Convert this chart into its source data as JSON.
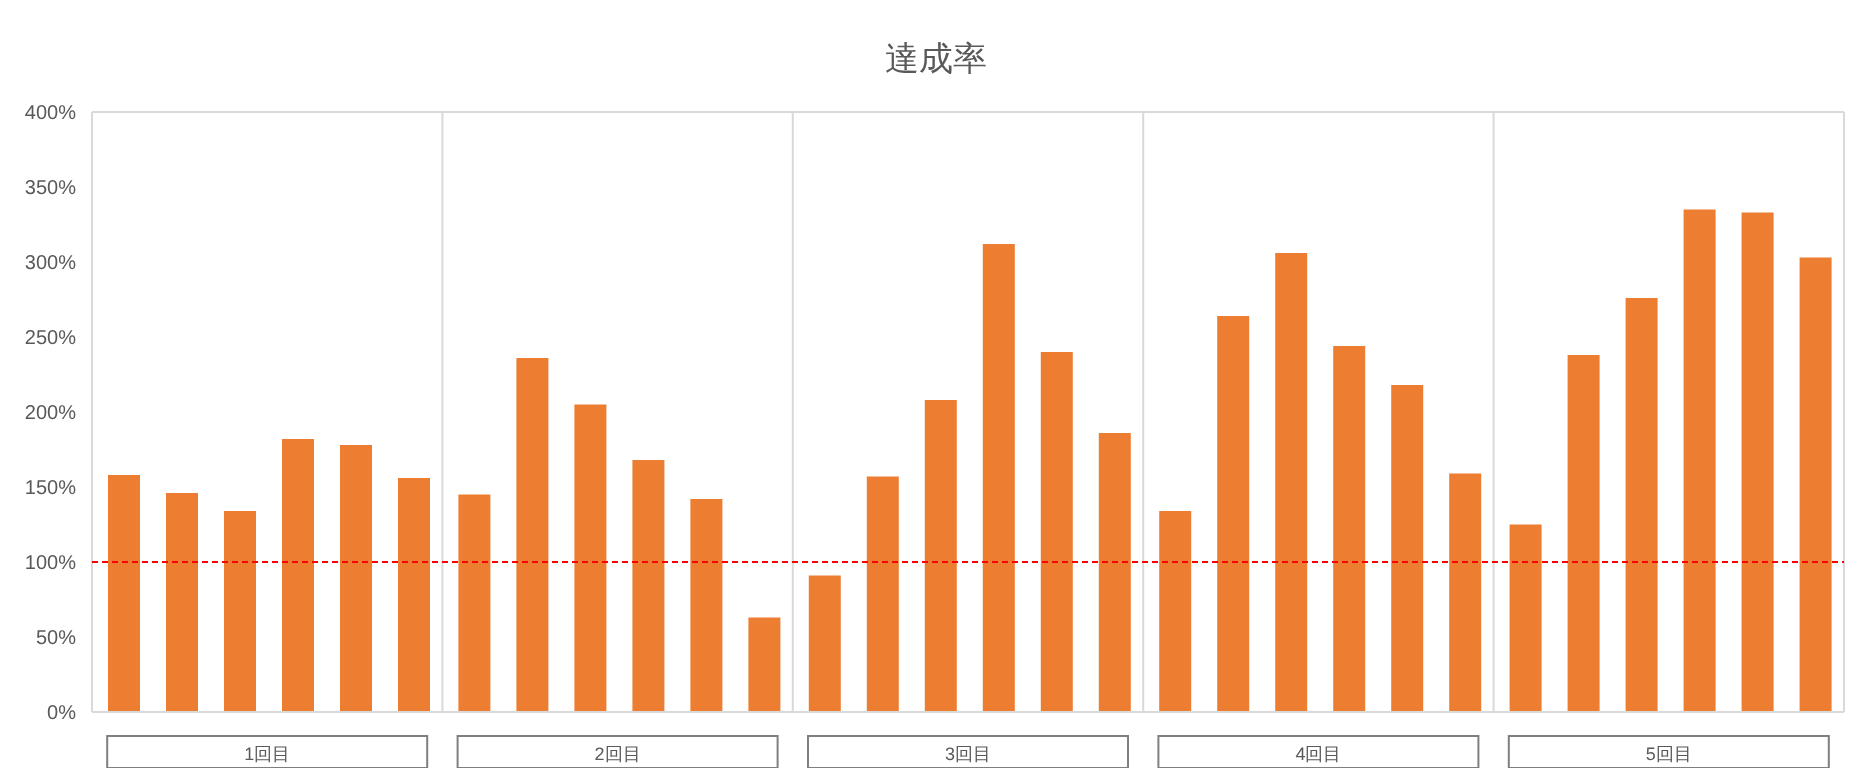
{
  "chart_data": {
    "type": "bar",
    "title": "達成率",
    "categories": [
      "1回目",
      "2回目",
      "3回目",
      "4回目",
      "5回目"
    ],
    "series": [
      {
        "color": "#ed7d31",
        "values": [
          158,
          145,
          91,
          134,
          125
        ]
      },
      {
        "color": "#ed7d31",
        "values": [
          146,
          236,
          157,
          264,
          238
        ]
      },
      {
        "color": "#ed7d31",
        "values": [
          134,
          205,
          208,
          306,
          276
        ]
      },
      {
        "color": "#ed7d31",
        "values": [
          182,
          168,
          312,
          244,
          335
        ]
      },
      {
        "color": "#ed7d31",
        "values": [
          178,
          142,
          240,
          218,
          333
        ]
      },
      {
        "color": "#ed7d31",
        "values": [
          156,
          63,
          186,
          159,
          303
        ]
      }
    ],
    "ylim": [
      0,
      400
    ],
    "yticks": [
      {
        "value": 0,
        "label": "0%"
      },
      {
        "value": 50,
        "label": "50%"
      },
      {
        "value": 100,
        "label": "100%"
      },
      {
        "value": 150,
        "label": "150%"
      },
      {
        "value": 200,
        "label": "200%"
      },
      {
        "value": 250,
        "label": "250%"
      },
      {
        "value": 300,
        "label": "300%"
      },
      {
        "value": 350,
        "label": "350%"
      },
      {
        "value": 400,
        "label": "400%"
      }
    ],
    "grid": true,
    "ref_lines": [
      {
        "axis": "y",
        "value": 100,
        "color": "#ff0000",
        "line_style": "dashed"
      }
    ]
  }
}
